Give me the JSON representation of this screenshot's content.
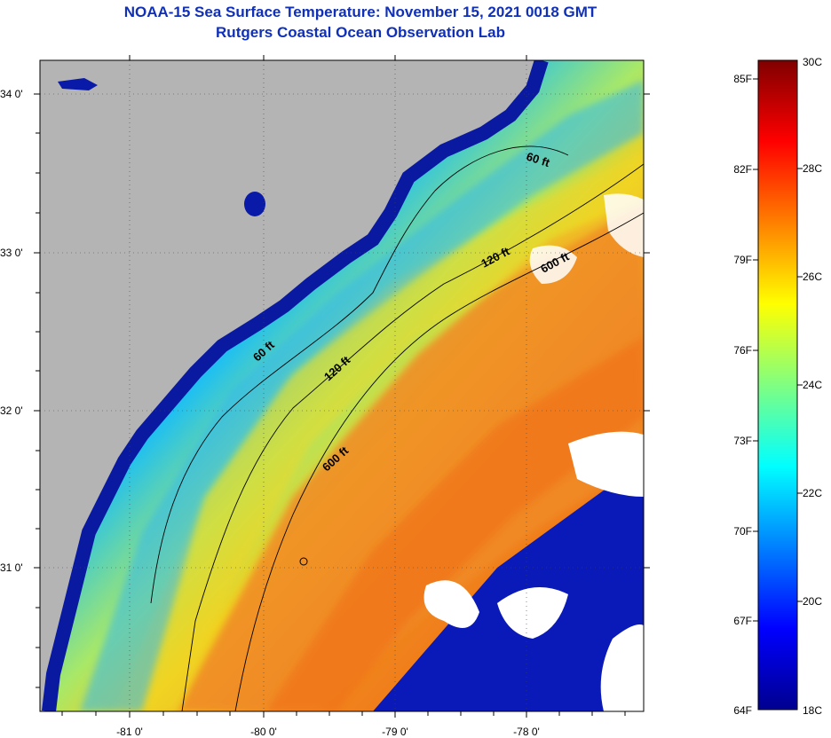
{
  "header": {
    "title_line1": "NOAA-15 Sea Surface Temperature:  November 15, 2021 0018 GMT",
    "title_line2": "Rutgers Coastal Ocean Observation Lab"
  },
  "map": {
    "lat_labels": [
      "34 0'",
      "33 0'",
      "32 0'",
      "31 0'"
    ],
    "lon_labels": [
      "-81 0'",
      "-80 0'",
      "-79 0'",
      "-78 0'"
    ],
    "isobath_labels": [
      "60 ft",
      "120 ft",
      "600 ft",
      "60 ft",
      "120 ft",
      "600 ft"
    ],
    "colors": {
      "land": "#b4b4b4",
      "cloud": "#ffffff",
      "coast_dark": "#0a1aa8",
      "water_mid": "#00c8f0",
      "water_warm": "#f0a020"
    }
  },
  "colorbar": {
    "fahrenheit_labels": [
      "85F",
      "82F",
      "79F",
      "76F",
      "73F",
      "70F",
      "67F",
      "64F"
    ],
    "celsius_labels": [
      "30C",
      "28C",
      "26C",
      "24C",
      "22C",
      "20C",
      "18C"
    ],
    "range_c": [
      18,
      30
    ],
    "colormap": "jet"
  }
}
